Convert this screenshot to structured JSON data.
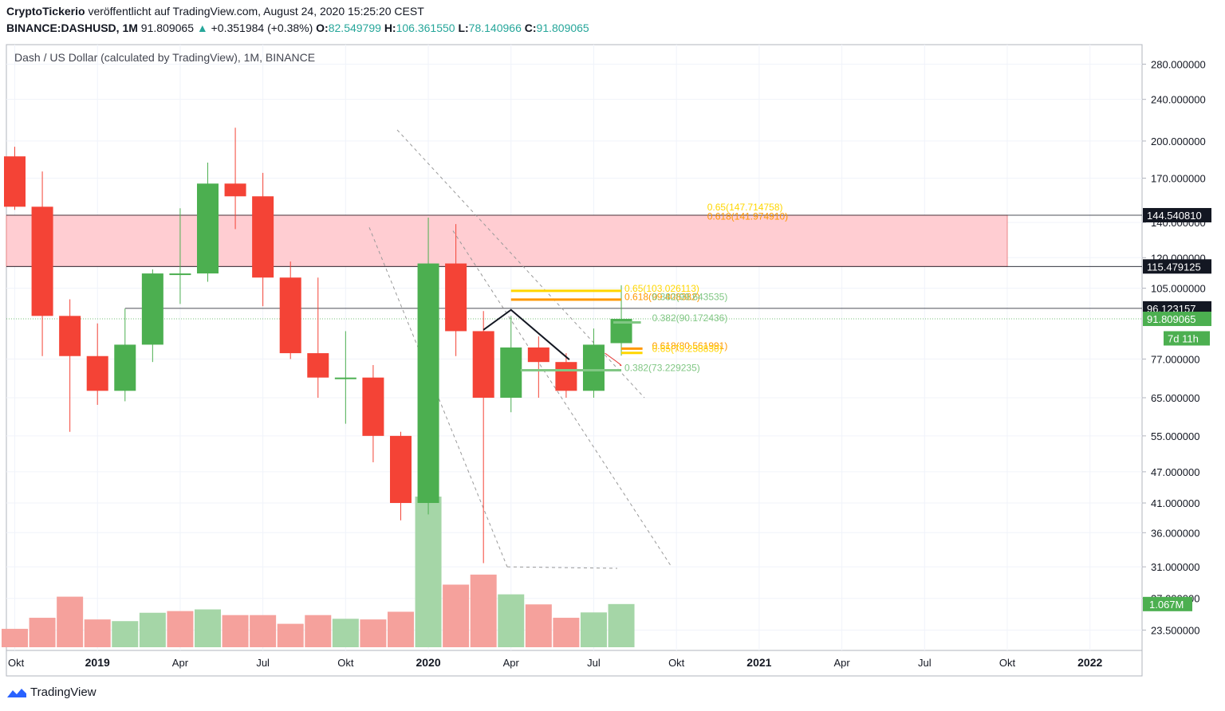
{
  "header": {
    "author": "CryptoTickerio",
    "published": "veröffentlicht auf TradingView.com, August 24, 2020 15:25:20 CEST",
    "symbol": "BINANCE:DASHUSD, 1M",
    "last": "91.809065",
    "change": "+0.351984 (+0.38%)",
    "o_label": "O:",
    "o": "82.549799",
    "h_label": "H:",
    "h": "106.361550",
    "l_label": "L:",
    "l": "78.140966",
    "c_label": "C:",
    "c": "91.809065"
  },
  "footer": {
    "brand": "TradingView"
  },
  "colors": {
    "up": "#4caf50",
    "down": "#f44336",
    "up_vol": "#a5d6a7",
    "down_vol": "#f5a19c",
    "zone": "#ffcdd2",
    "fib_yellow": "#ffd600",
    "fib_orange": "#ff9800",
    "fib_green": "#81c784"
  },
  "chart_data": {
    "type": "candlestick",
    "title": "Dash / US Dollar (calculated by TradingView), 1M, BINANCE",
    "y_scale": "log",
    "y_range": [
      21.5,
      305
    ],
    "y_ticks": [
      "280.000000",
      "240.000000",
      "200.000000",
      "170.000000",
      "140.000000",
      "120.000000",
      "105.000000",
      "91.809065",
      "77.000000",
      "65.000000",
      "55.000000",
      "47.000000",
      "41.000000",
      "36.000000",
      "31.000000",
      "27.000000",
      "23.500000"
    ],
    "x_ticks": [
      "Okt",
      "2019",
      "Apr",
      "Jul",
      "Okt",
      "2020",
      "Apr",
      "Jul",
      "Okt",
      "2021",
      "Apr",
      "Jul",
      "Okt",
      "2022"
    ],
    "candles": [
      {
        "date": "2018-10",
        "o": 187,
        "h": 195,
        "l": 148,
        "c": 150
      },
      {
        "date": "2018-11",
        "o": 150,
        "h": 175,
        "l": 78,
        "c": 93
      },
      {
        "date": "2018-12",
        "o": 93,
        "h": 100,
        "l": 56,
        "c": 78
      },
      {
        "date": "2019-01",
        "o": 78,
        "h": 90,
        "l": 63,
        "c": 67
      },
      {
        "date": "2019-02",
        "o": 67,
        "h": 96,
        "l": 64,
        "c": 82
      },
      {
        "date": "2019-03",
        "o": 82,
        "h": 114,
        "l": 76,
        "c": 112
      },
      {
        "date": "2019-04",
        "o": 112,
        "h": 149,
        "l": 98,
        "c": 112
      },
      {
        "date": "2019-05",
        "o": 112,
        "h": 182,
        "l": 108,
        "c": 166
      },
      {
        "date": "2019-06",
        "o": 166,
        "h": 212,
        "l": 136,
        "c": 157
      },
      {
        "date": "2019-07",
        "o": 157,
        "h": 174,
        "l": 97,
        "c": 110
      },
      {
        "date": "2019-08",
        "o": 110,
        "h": 118,
        "l": 77,
        "c": 79
      },
      {
        "date": "2019-09",
        "o": 79,
        "h": 110,
        "l": 65,
        "c": 71
      },
      {
        "date": "2019-10",
        "o": 71,
        "h": 87,
        "l": 58,
        "c": 71
      },
      {
        "date": "2019-11",
        "o": 71,
        "h": 75,
        "l": 49,
        "c": 55
      },
      {
        "date": "2019-12",
        "o": 55,
        "h": 56,
        "l": 38,
        "c": 41
      },
      {
        "date": "2020-01",
        "o": 41,
        "h": 143,
        "l": 39,
        "c": 117
      },
      {
        "date": "2020-02",
        "o": 117,
        "h": 139,
        "l": 78,
        "c": 87
      },
      {
        "date": "2020-03",
        "o": 87,
        "h": 95,
        "l": 31.5,
        "c": 65
      },
      {
        "date": "2020-04",
        "o": 65,
        "h": 93,
        "l": 61,
        "c": 81
      },
      {
        "date": "2020-05",
        "o": 81,
        "h": 85,
        "l": 65,
        "c": 76
      },
      {
        "date": "2020-06",
        "o": 76,
        "h": 79,
        "l": 65,
        "c": 67
      },
      {
        "date": "2020-07",
        "o": 67,
        "h": 88,
        "l": 65,
        "c": 82
      },
      {
        "date": "2020-08",
        "o": 82.549799,
        "h": 106.36155,
        "l": 78.140966,
        "c": 91.809065
      }
    ],
    "volume_label": "1.067M",
    "volume": [
      {
        "date": "2018-10",
        "v": 0.55,
        "up": false
      },
      {
        "date": "2018-11",
        "v": 0.88,
        "up": false
      },
      {
        "date": "2018-12",
        "v": 1.51,
        "up": false
      },
      {
        "date": "2019-01",
        "v": 0.83,
        "up": false
      },
      {
        "date": "2019-02",
        "v": 0.78,
        "up": true
      },
      {
        "date": "2019-03",
        "v": 1.03,
        "up": true
      },
      {
        "date": "2019-04",
        "v": 1.08,
        "up": false
      },
      {
        "date": "2019-05",
        "v": 1.13,
        "up": true
      },
      {
        "date": "2019-06",
        "v": 0.96,
        "up": false
      },
      {
        "date": "2019-07",
        "v": 0.96,
        "up": false
      },
      {
        "date": "2019-08",
        "v": 0.7,
        "up": false
      },
      {
        "date": "2019-09",
        "v": 0.96,
        "up": false
      },
      {
        "date": "2019-10",
        "v": 0.85,
        "up": true
      },
      {
        "date": "2019-11",
        "v": 0.83,
        "up": false
      },
      {
        "date": "2019-12",
        "v": 1.06,
        "up": false
      },
      {
        "date": "2020-01",
        "v": 4.5,
        "up": true
      },
      {
        "date": "2020-02",
        "v": 1.87,
        "up": false
      },
      {
        "date": "2020-03",
        "v": 2.17,
        "up": false
      },
      {
        "date": "2020-04",
        "v": 1.58,
        "up": true
      },
      {
        "date": "2020-05",
        "v": 1.28,
        "up": false
      },
      {
        "date": "2020-06",
        "v": 0.88,
        "up": false
      },
      {
        "date": "2020-07",
        "v": 1.04,
        "up": true
      },
      {
        "date": "2020-08",
        "v": 1.29,
        "up": true
      }
    ],
    "price_badges": [
      {
        "label": "144.540810",
        "value": 144.54081,
        "style": "dark"
      },
      {
        "label": "115.479125",
        "value": 115.479125,
        "style": "dark"
      },
      {
        "label": "96.123157",
        "value": 96.123157,
        "style": "dark"
      },
      {
        "label": "91.809065",
        "value": 91.809065,
        "style": "green"
      },
      {
        "label": "7d 11h",
        "value": 84.3,
        "style": "green"
      }
    ],
    "resistance_zone": {
      "from": "2018-10",
      "to": "2021-10",
      "low": 115.479125,
      "high": 144.54081
    },
    "fib_labels": [
      {
        "text": "0.65(147.714758)",
        "value": 149.6,
        "color": "yellow",
        "date": "2020-11"
      },
      {
        "text": "0.618(141.974910)",
        "value": 143.8,
        "color": "orange",
        "date": "2020-11"
      },
      {
        "text": "0.65(103.026113)",
        "value": 104.8,
        "color": "yellow",
        "date": "2020-08"
      },
      {
        "text": "0.618(99.408382)",
        "value": 101.1,
        "color": "orange",
        "date": "2020-08"
      },
      {
        "text": "0.382(99.643535)",
        "value": 101.1,
        "color": "green",
        "date": "2020-09"
      },
      {
        "text": "0.382(90.172436)",
        "value": 92.2,
        "color": "green",
        "date": "2020-09"
      },
      {
        "text": "0.618(80.561991)",
        "value": 81.6,
        "color": "orange",
        "date": "2020-09"
      },
      {
        "text": "0.65(79.258830)",
        "value": 80.5,
        "color": "yellow",
        "date": "2020-09"
      },
      {
        "text": "0.382(73.229235)",
        "value": 74.1,
        "color": "green",
        "date": "2020-08"
      }
    ]
  }
}
